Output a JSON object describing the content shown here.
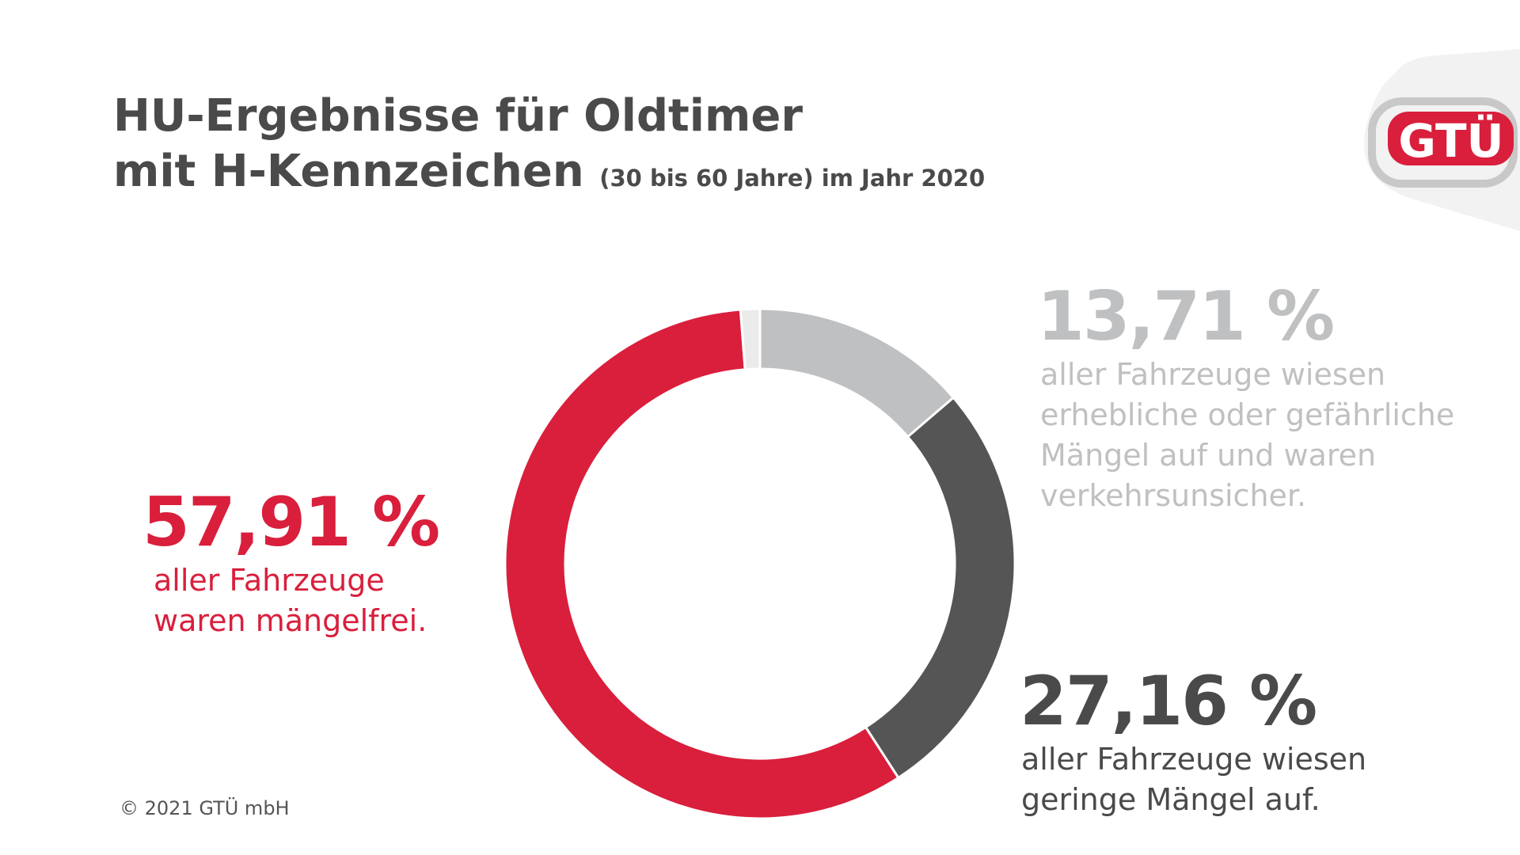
{
  "title": {
    "line1": "HU-Ergebnisse für Oldtimer",
    "line2": "mit H-Kennzeichen",
    "subtitle": "(30 bis 60 Jahre) im Jahr 2020"
  },
  "logo": {
    "text": "GTÜ",
    "color": "#d91f3c"
  },
  "chart_data": {
    "type": "pie",
    "style": "donut",
    "title": "HU-Ergebnisse für Oldtimer mit H-Kennzeichen (30 bis 60 Jahre) im Jahr 2020",
    "slices": [
      {
        "key": "erheblich",
        "value": 13.71,
        "value_label": "13,71 %",
        "description": "aller Fahrzeuge wiesen erhebliche oder gefährliche Mängel auf und waren verkehrsunsicher.",
        "color": "#bfc0c2"
      },
      {
        "key": "gering",
        "value": 27.16,
        "value_label": "27,16 %",
        "description": "aller Fahrzeuge wiesen geringe Mängel auf.",
        "color": "#555555"
      },
      {
        "key": "mangelfrei",
        "value": 57.91,
        "value_label": "57,91 %",
        "description": "aller Fahrzeuge waren mängelfrei.",
        "color": "#d91f3c"
      },
      {
        "key": "other",
        "value": 1.22,
        "color": "#ebebeb"
      }
    ]
  },
  "labels": {
    "mangelfrei": {
      "pct": "57,91 %",
      "lines": [
        "aller Fahrzeuge",
        "waren mängelfrei."
      ]
    },
    "erheblich": {
      "pct": "13,71 %",
      "lines": [
        "aller Fahrzeuge wiesen",
        "erhebliche oder gefährliche",
        "Mängel auf und waren",
        "verkehrsunsicher."
      ]
    },
    "gering": {
      "pct": "27,16 %",
      "lines": [
        "aller Fahrzeuge wiesen",
        "geringe Mängel auf."
      ]
    }
  },
  "footer": {
    "copyright": "© 2021 GTÜ mbH"
  }
}
